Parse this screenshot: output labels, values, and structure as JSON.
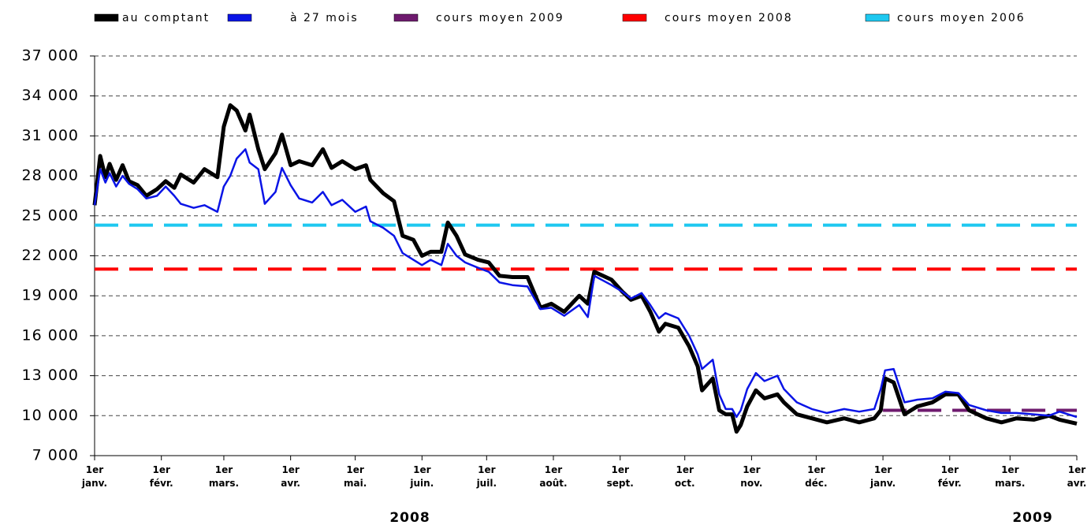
{
  "chart_data": {
    "type": "line",
    "annotations": [
      "2008",
      "2009"
    ],
    "x": [
      0,
      2.6,
      5,
      7,
      10,
      13,
      16,
      20,
      24,
      29,
      33,
      37,
      40,
      46,
      51,
      57,
      60,
      63,
      66,
      70,
      72,
      76,
      79,
      84,
      87,
      91,
      95,
      101,
      106,
      110,
      115,
      121,
      126,
      128,
      134,
      139,
      143,
      148,
      152,
      156,
      161,
      164,
      168,
      172,
      178,
      183,
      188,
      194,
      201,
      207,
      212,
      218,
      225,
      229,
      232,
      240,
      245,
      249,
      254,
      258,
      262,
      265,
      271,
      276,
      280,
      282,
      287,
      290,
      293,
      296,
      298,
      300,
      303,
      307,
      311,
      317,
      320,
      326,
      333,
      340,
      348,
      355,
      362,
      365,
      367,
      371,
      376,
      382,
      389,
      395,
      401,
      406,
      414,
      421,
      428,
      436,
      443,
      448,
      456
    ],
    "series": [
      {
        "name": "au comptant",
        "color": "#000000",
        "values": [
          25800,
          29500,
          27900,
          28900,
          27700,
          28800,
          27600,
          27300,
          26500,
          27000,
          27600,
          27100,
          28100,
          27500,
          28500,
          27900,
          31700,
          33300,
          32900,
          31400,
          32600,
          30000,
          28500,
          29700,
          31100,
          28800,
          29100,
          28800,
          30000,
          28600,
          29100,
          28500,
          28800,
          27700,
          26700,
          26100,
          23500,
          23200,
          22000,
          22300,
          22300,
          24500,
          23500,
          22100,
          21700,
          21500,
          20500,
          20400,
          20400,
          18100,
          18400,
          17800,
          19000,
          18400,
          20800,
          20200,
          19300,
          18700,
          19000,
          17800,
          16300,
          16900,
          16600,
          15200,
          13700,
          11900,
          12800,
          10400,
          10100,
          10100,
          8800,
          9300,
          10700,
          11900,
          11300,
          11600,
          11000,
          10100,
          9800,
          9500,
          9800,
          9500,
          9800,
          10400,
          12800,
          12500,
          10100,
          10700,
          11000,
          11600,
          11600,
          10400,
          9800,
          9500,
          9800,
          9700,
          10000,
          9700,
          9400
        ]
      },
      {
        "name": "à 27 mois",
        "color": "#0a14e6",
        "values": [
          25800,
          28500,
          27500,
          28200,
          27200,
          28000,
          27400,
          27000,
          26300,
          26500,
          27200,
          26500,
          25900,
          25600,
          25800,
          25300,
          27200,
          28000,
          29300,
          30000,
          29000,
          28500,
          25900,
          26800,
          28600,
          27300,
          26300,
          26000,
          26800,
          25800,
          26200,
          25300,
          25700,
          24600,
          24100,
          23500,
          22200,
          21700,
          21300,
          21700,
          21300,
          22900,
          22000,
          21500,
          21100,
          20800,
          20000,
          19800,
          19700,
          18000,
          18100,
          17500,
          18300,
          17400,
          20500,
          19800,
          19300,
          18800,
          19200,
          18300,
          17300,
          17700,
          17300,
          16000,
          14600,
          13500,
          14200,
          11600,
          10500,
          10500,
          9900,
          10400,
          12000,
          13200,
          12600,
          13000,
          12000,
          11000,
          10500,
          10200,
          10500,
          10300,
          10500,
          12000,
          13400,
          13500,
          11000,
          11200,
          11300,
          11800,
          11700,
          10800,
          10400,
          10200,
          10200,
          10100,
          10000,
          10300,
          9900
        ]
      }
    ],
    "hlines": [
      {
        "name": "cours moyen 2009",
        "color": "#6e1a6e",
        "value": 10400,
        "from": 366,
        "to": 456
      },
      {
        "name": "cours moyen 2008",
        "color": "#ff0000",
        "value": 21000,
        "from": 0,
        "to": 456
      },
      {
        "name": "cours moyen 2006",
        "color": "#1ec8f0",
        "value": 24300,
        "from": 0,
        "to": 456
      }
    ],
    "xlim": [
      0,
      456
    ],
    "xticks": [
      {
        "value": 0,
        "label": "1er janv."
      },
      {
        "value": 31,
        "label": "1er févr."
      },
      {
        "value": 60,
        "label": "1er mars."
      },
      {
        "value": 91,
        "label": "1er avr."
      },
      {
        "value": 121,
        "label": "1er mai."
      },
      {
        "value": 152,
        "label": "1er juin."
      },
      {
        "value": 182,
        "label": "1er juil."
      },
      {
        "value": 213,
        "label": "1er août."
      },
      {
        "value": 244,
        "label": "1er sept."
      },
      {
        "value": 274,
        "label": "1er oct."
      },
      {
        "value": 305,
        "label": "1er nov."
      },
      {
        "value": 335,
        "label": "1er déc."
      },
      {
        "value": 366,
        "label": "1er janv."
      },
      {
        "value": 397,
        "label": "1er févr."
      },
      {
        "value": 425,
        "label": "1er mars."
      },
      {
        "value": 456,
        "label": "1er avr."
      }
    ],
    "ylim": [
      7000,
      37000
    ],
    "yticks": [
      {
        "value": 7000,
        "label": "7 000"
      },
      {
        "value": 10000,
        "label": "10 000"
      },
      {
        "value": 13000,
        "label": "13 000"
      },
      {
        "value": 16000,
        "label": "16 000"
      },
      {
        "value": 19000,
        "label": "19 000"
      },
      {
        "value": 22000,
        "label": "22 000"
      },
      {
        "value": 25000,
        "label": "25 000"
      },
      {
        "value": 28000,
        "label": "28 000"
      },
      {
        "value": 31000,
        "label": "31 000"
      },
      {
        "value": 34000,
        "label": "34 000"
      },
      {
        "value": 37000,
        "label": "37 000"
      }
    ],
    "grid": true
  }
}
